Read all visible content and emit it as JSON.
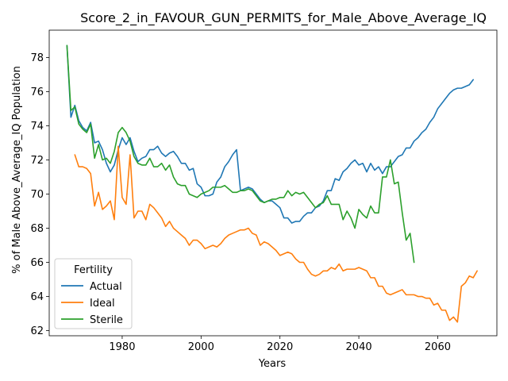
{
  "chart_data": {
    "type": "line",
    "title": "Score_2_in_FAVOUR_GUN_PERMITS_for_Male_Above_Average_IQ",
    "xlabel": "Years",
    "ylabel": "% of Male Above_Average_IQ Population",
    "xlim": [
      1961.5,
      2075
    ],
    "ylim": [
      61.7,
      79.6
    ],
    "xticks": [
      1980,
      2000,
      2020,
      2040,
      2060
    ],
    "yticks": [
      62,
      64,
      66,
      68,
      70,
      72,
      74,
      76,
      78
    ],
    "grid": false,
    "legend": {
      "title": "Fertility",
      "placement": "lower-left"
    },
    "series": [
      {
        "name": "Actual",
        "color": "#1f77b4",
        "points": [
          [
            1966,
            78.7
          ],
          [
            1967,
            74.5
          ],
          [
            1968,
            75.2
          ],
          [
            1969,
            74.3
          ],
          [
            1970,
            73.9
          ],
          [
            1971,
            73.7
          ],
          [
            1972,
            74.2
          ],
          [
            1973,
            73.0
          ],
          [
            1974,
            73.1
          ],
          [
            1975,
            72.6
          ],
          [
            1976,
            71.8
          ],
          [
            1977,
            71.3
          ],
          [
            1978,
            71.7
          ],
          [
            1979,
            72.6
          ],
          [
            1980,
            73.3
          ],
          [
            1981,
            72.9
          ],
          [
            1982,
            73.3
          ],
          [
            1983,
            72.5
          ],
          [
            1984,
            71.9
          ],
          [
            1985,
            72.1
          ],
          [
            1986,
            72.2
          ],
          [
            1987,
            72.6
          ],
          [
            1988,
            72.6
          ],
          [
            1989,
            72.8
          ],
          [
            1990,
            72.4
          ],
          [
            1991,
            72.2
          ],
          [
            1992,
            72.4
          ],
          [
            1993,
            72.5
          ],
          [
            1994,
            72.2
          ],
          [
            1995,
            71.8
          ],
          [
            1996,
            71.8
          ],
          [
            1997,
            71.4
          ],
          [
            1998,
            71.5
          ],
          [
            1999,
            70.6
          ],
          [
            2000,
            70.4
          ],
          [
            2001,
            69.9
          ],
          [
            2002,
            69.9
          ],
          [
            2003,
            70.0
          ],
          [
            2004,
            70.7
          ],
          [
            2005,
            71.0
          ],
          [
            2006,
            71.6
          ],
          [
            2007,
            71.9
          ],
          [
            2008,
            72.3
          ],
          [
            2009,
            72.6
          ],
          [
            2010,
            70.2
          ],
          [
            2011,
            70.3
          ],
          [
            2012,
            70.4
          ],
          [
            2013,
            70.3
          ],
          [
            2014,
            70.0
          ],
          [
            2015,
            69.7
          ],
          [
            2016,
            69.5
          ],
          [
            2017,
            69.6
          ],
          [
            2018,
            69.6
          ],
          [
            2019,
            69.4
          ],
          [
            2020,
            69.2
          ],
          [
            2021,
            68.6
          ],
          [
            2022,
            68.6
          ],
          [
            2023,
            68.3
          ],
          [
            2024,
            68.4
          ],
          [
            2025,
            68.4
          ],
          [
            2026,
            68.7
          ],
          [
            2027,
            68.9
          ],
          [
            2028,
            68.9
          ],
          [
            2029,
            69.2
          ],
          [
            2030,
            69.3
          ],
          [
            2031,
            69.6
          ],
          [
            2032,
            70.2
          ],
          [
            2033,
            70.2
          ],
          [
            2034,
            70.9
          ],
          [
            2035,
            70.8
          ],
          [
            2036,
            71.3
          ],
          [
            2037,
            71.5
          ],
          [
            2038,
            71.8
          ],
          [
            2039,
            72.0
          ],
          [
            2040,
            71.7
          ],
          [
            2041,
            71.8
          ],
          [
            2042,
            71.3
          ],
          [
            2043,
            71.8
          ],
          [
            2044,
            71.4
          ],
          [
            2045,
            71.6
          ],
          [
            2046,
            71.2
          ],
          [
            2047,
            71.6
          ],
          [
            2048,
            71.6
          ],
          [
            2049,
            71.9
          ],
          [
            2050,
            72.2
          ],
          [
            2051,
            72.3
          ],
          [
            2052,
            72.7
          ],
          [
            2053,
            72.7
          ],
          [
            2054,
            73.1
          ],
          [
            2055,
            73.3
          ],
          [
            2056,
            73.6
          ],
          [
            2057,
            73.8
          ],
          [
            2058,
            74.2
          ],
          [
            2059,
            74.5
          ],
          [
            2060,
            75.0
          ],
          [
            2061,
            75.3
          ],
          [
            2062,
            75.6
          ],
          [
            2063,
            75.9
          ],
          [
            2064,
            76.1
          ],
          [
            2065,
            76.2
          ],
          [
            2066,
            76.2
          ],
          [
            2067,
            76.3
          ],
          [
            2068,
            76.4
          ],
          [
            2069,
            76.7
          ]
        ]
      },
      {
        "name": "Ideal",
        "color": "#ff7f0e",
        "points": [
          [
            1968,
            72.3
          ],
          [
            1969,
            71.6
          ],
          [
            1970,
            71.6
          ],
          [
            1971,
            71.5
          ],
          [
            1972,
            71.2
          ],
          [
            1973,
            69.3
          ],
          [
            1974,
            70.1
          ],
          [
            1975,
            69.1
          ],
          [
            1976,
            69.3
          ],
          [
            1977,
            69.6
          ],
          [
            1978,
            68.5
          ],
          [
            1979,
            72.8
          ],
          [
            1980,
            69.8
          ],
          [
            1981,
            69.4
          ],
          [
            1982,
            72.3
          ],
          [
            1983,
            68.6
          ],
          [
            1984,
            69.0
          ],
          [
            1985,
            69.0
          ],
          [
            1986,
            68.5
          ],
          [
            1987,
            69.4
          ],
          [
            1988,
            69.2
          ],
          [
            1989,
            68.9
          ],
          [
            1990,
            68.6
          ],
          [
            1991,
            68.1
          ],
          [
            1992,
            68.4
          ],
          [
            1993,
            68.0
          ],
          [
            1994,
            67.8
          ],
          [
            1995,
            67.6
          ],
          [
            1996,
            67.4
          ],
          [
            1997,
            67.0
          ],
          [
            1998,
            67.3
          ],
          [
            1999,
            67.3
          ],
          [
            2000,
            67.1
          ],
          [
            2001,
            66.8
          ],
          [
            2002,
            66.9
          ],
          [
            2003,
            67.0
          ],
          [
            2004,
            66.9
          ],
          [
            2005,
            67.1
          ],
          [
            2006,
            67.4
          ],
          [
            2007,
            67.6
          ],
          [
            2008,
            67.7
          ],
          [
            2009,
            67.8
          ],
          [
            2010,
            67.9
          ],
          [
            2011,
            67.9
          ],
          [
            2012,
            68.0
          ],
          [
            2013,
            67.7
          ],
          [
            2014,
            67.6
          ],
          [
            2015,
            67.0
          ],
          [
            2016,
            67.2
          ],
          [
            2017,
            67.1
          ],
          [
            2018,
            66.9
          ],
          [
            2019,
            66.7
          ],
          [
            2020,
            66.4
          ],
          [
            2021,
            66.5
          ],
          [
            2022,
            66.6
          ],
          [
            2023,
            66.5
          ],
          [
            2024,
            66.2
          ],
          [
            2025,
            66.0
          ],
          [
            2026,
            66.0
          ],
          [
            2027,
            65.6
          ],
          [
            2028,
            65.3
          ],
          [
            2029,
            65.2
          ],
          [
            2030,
            65.3
          ],
          [
            2031,
            65.5
          ],
          [
            2032,
            65.5
          ],
          [
            2033,
            65.7
          ],
          [
            2034,
            65.6
          ],
          [
            2035,
            65.9
          ],
          [
            2036,
            65.5
          ],
          [
            2037,
            65.6
          ],
          [
            2038,
            65.6
          ],
          [
            2039,
            65.6
          ],
          [
            2040,
            65.7
          ],
          [
            2041,
            65.6
          ],
          [
            2042,
            65.5
          ],
          [
            2043,
            65.1
          ],
          [
            2044,
            65.1
          ],
          [
            2045,
            64.6
          ],
          [
            2046,
            64.6
          ],
          [
            2047,
            64.2
          ],
          [
            2048,
            64.1
          ],
          [
            2049,
            64.2
          ],
          [
            2050,
            64.3
          ],
          [
            2051,
            64.4
          ],
          [
            2052,
            64.1
          ],
          [
            2053,
            64.1
          ],
          [
            2054,
            64.1
          ],
          [
            2055,
            64.0
          ],
          [
            2056,
            64.0
          ],
          [
            2057,
            63.9
          ],
          [
            2058,
            63.9
          ],
          [
            2059,
            63.5
          ],
          [
            2060,
            63.6
          ],
          [
            2061,
            63.2
          ],
          [
            2062,
            63.2
          ],
          [
            2063,
            62.6
          ],
          [
            2064,
            62.8
          ],
          [
            2065,
            62.5
          ],
          [
            2066,
            64.6
          ],
          [
            2067,
            64.8
          ],
          [
            2068,
            65.2
          ],
          [
            2069,
            65.1
          ],
          [
            2070,
            65.5
          ]
        ]
      },
      {
        "name": "Sterile",
        "color": "#2ca02c",
        "points": [
          [
            1966,
            78.7
          ],
          [
            1967,
            74.9
          ],
          [
            1968,
            75.1
          ],
          [
            1969,
            74.1
          ],
          [
            1970,
            73.8
          ],
          [
            1971,
            73.6
          ],
          [
            1972,
            74.1
          ],
          [
            1973,
            72.1
          ],
          [
            1974,
            72.9
          ],
          [
            1975,
            72.0
          ],
          [
            1976,
            72.1
          ],
          [
            1977,
            71.8
          ],
          [
            1978,
            72.5
          ],
          [
            1979,
            73.6
          ],
          [
            1980,
            73.9
          ],
          [
            1981,
            73.6
          ],
          [
            1982,
            73.1
          ],
          [
            1983,
            72.2
          ],
          [
            1984,
            71.8
          ],
          [
            1985,
            71.7
          ],
          [
            1986,
            71.7
          ],
          [
            1987,
            72.1
          ],
          [
            1988,
            71.6
          ],
          [
            1989,
            71.6
          ],
          [
            1990,
            71.8
          ],
          [
            1991,
            71.4
          ],
          [
            1992,
            71.7
          ],
          [
            1993,
            71.0
          ],
          [
            1994,
            70.6
          ],
          [
            1995,
            70.5
          ],
          [
            1996,
            70.5
          ],
          [
            1997,
            70.0
          ],
          [
            1998,
            69.9
          ],
          [
            1999,
            69.8
          ],
          [
            2000,
            70.0
          ],
          [
            2001,
            70.1
          ],
          [
            2002,
            70.2
          ],
          [
            2003,
            70.4
          ],
          [
            2004,
            70.4
          ],
          [
            2005,
            70.4
          ],
          [
            2006,
            70.5
          ],
          [
            2007,
            70.3
          ],
          [
            2008,
            70.1
          ],
          [
            2009,
            70.1
          ],
          [
            2010,
            70.2
          ],
          [
            2011,
            70.2
          ],
          [
            2012,
            70.3
          ],
          [
            2013,
            70.2
          ],
          [
            2014,
            69.9
          ],
          [
            2015,
            69.6
          ],
          [
            2016,
            69.5
          ],
          [
            2017,
            69.6
          ],
          [
            2018,
            69.7
          ],
          [
            2019,
            69.7
          ],
          [
            2020,
            69.8
          ],
          [
            2021,
            69.8
          ],
          [
            2022,
            70.2
          ],
          [
            2023,
            69.9
          ],
          [
            2024,
            70.1
          ],
          [
            2025,
            70.0
          ],
          [
            2026,
            70.1
          ],
          [
            2027,
            69.8
          ],
          [
            2028,
            69.5
          ],
          [
            2029,
            69.2
          ],
          [
            2030,
            69.4
          ],
          [
            2031,
            69.5
          ],
          [
            2032,
            69.9
          ],
          [
            2033,
            69.4
          ],
          [
            2034,
            69.4
          ],
          [
            2035,
            69.4
          ],
          [
            2036,
            68.5
          ],
          [
            2037,
            69.0
          ],
          [
            2038,
            68.6
          ],
          [
            2039,
            68.0
          ],
          [
            2040,
            69.1
          ],
          [
            2041,
            68.8
          ],
          [
            2042,
            68.6
          ],
          [
            2043,
            69.3
          ],
          [
            2044,
            68.9
          ],
          [
            2045,
            68.9
          ],
          [
            2046,
            71.0
          ],
          [
            2047,
            71.0
          ],
          [
            2048,
            72.0
          ],
          [
            2049,
            70.6
          ],
          [
            2050,
            70.7
          ],
          [
            2051,
            68.9
          ],
          [
            2052,
            67.3
          ],
          [
            2053,
            67.7
          ],
          [
            2054,
            66.0
          ]
        ]
      }
    ]
  }
}
